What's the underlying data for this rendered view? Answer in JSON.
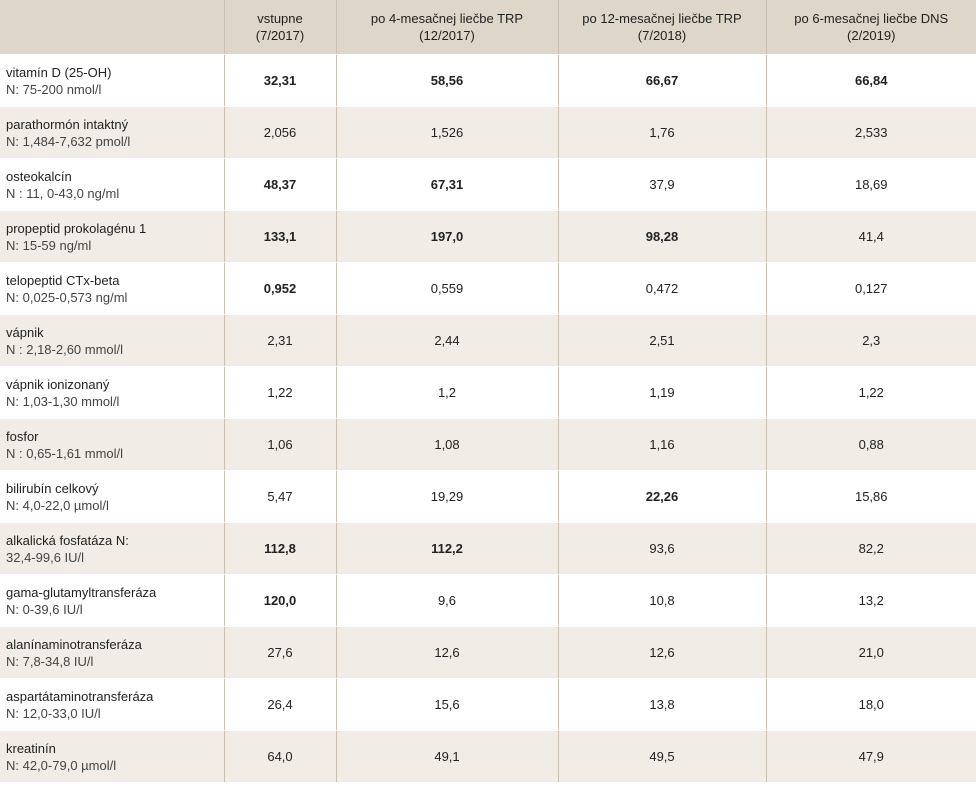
{
  "headers": [
    {
      "line1": "",
      "line2": ""
    },
    {
      "line1": "vstupne",
      "line2": "(7/2017)"
    },
    {
      "line1": "po 4-mesačnej liečbe TRP",
      "line2": "(12/2017)"
    },
    {
      "line1": "po 12-mesačnej liečbe TRP",
      "line2": "(7/2018)"
    },
    {
      "line1": "po 6-mesačnej liečbe DNS",
      "line2": "(2/2019)"
    }
  ],
  "rows": [
    {
      "param": "vitamín D (25-OH)",
      "norm": "N: 75-200 nmol/l",
      "values": [
        "32,31",
        "58,56",
        "66,67",
        "66,84"
      ],
      "bold": [
        true,
        true,
        true,
        true
      ]
    },
    {
      "param": "parathormón intaktný",
      "norm": "N: 1,484-7,632 pmol/l",
      "values": [
        "2,056",
        "1,526",
        "1,76",
        "2,533"
      ],
      "bold": [
        false,
        false,
        false,
        false
      ]
    },
    {
      "param": "osteokalcín",
      "norm": "N : 11, 0-43,0 ng/ml",
      "values": [
        "48,37",
        "67,31",
        "37,9",
        "18,69"
      ],
      "bold": [
        true,
        true,
        false,
        false
      ]
    },
    {
      "param": "propeptid prokolagénu 1",
      "norm": "N: 15-59 ng/ml",
      "values": [
        "133,1",
        "197,0",
        "98,28",
        "41,4"
      ],
      "bold": [
        true,
        true,
        true,
        false
      ]
    },
    {
      "param": "telopeptid CTx-beta",
      "norm": "N: 0,025-0,573 ng/ml",
      "values": [
        "0,952",
        "0,559",
        "0,472",
        "0,127"
      ],
      "bold": [
        true,
        false,
        false,
        false
      ]
    },
    {
      "param": "vápnik",
      "norm": "N : 2,18-2,60 mmol/l",
      "values": [
        "2,31",
        "2,44",
        "2,51",
        "2,3"
      ],
      "bold": [
        false,
        false,
        false,
        false
      ]
    },
    {
      "param": "vápnik ionizonaný",
      "norm": "N: 1,03-1,30 mmol/l",
      "values": [
        "1,22",
        "1,2",
        "1,19",
        "1,22"
      ],
      "bold": [
        false,
        false,
        false,
        false
      ]
    },
    {
      "param": "fosfor",
      "norm": "N : 0,65-1,61 mmol/l",
      "values": [
        "1,06",
        "1,08",
        "1,16",
        "0,88"
      ],
      "bold": [
        false,
        false,
        false,
        false
      ]
    },
    {
      "param": "bilirubín celkový",
      "norm": "N: 4,0-22,0 µmol/l",
      "values": [
        "5,47",
        "19,29",
        "22,26",
        "15,86"
      ],
      "bold": [
        false,
        false,
        true,
        false
      ]
    },
    {
      "param": "alkalická fosfatáza  N:",
      "norm": "32,4-99,6 IU/l",
      "values": [
        "112,8",
        "112,2",
        "93,6",
        "82,2"
      ],
      "bold": [
        true,
        true,
        false,
        false
      ]
    },
    {
      "param": "gama-glutamyltransferáza",
      "norm": "N: 0-39,6 IU/l",
      "values": [
        "120,0",
        "9,6",
        "10,8",
        "13,2"
      ],
      "bold": [
        true,
        false,
        false,
        false
      ]
    },
    {
      "param": "alanínaminotransferáza",
      "norm": "N: 7,8-34,8 IU/l",
      "values": [
        "27,6",
        "12,6",
        "12,6",
        "21,0"
      ],
      "bold": [
        false,
        false,
        false,
        false
      ]
    },
    {
      "param": "aspartátaminotransferáza",
      "norm": "N: 12,0-33,0 IU/l",
      "values": [
        "26,4",
        "15,6",
        "13,8",
        "18,0"
      ],
      "bold": [
        false,
        false,
        false,
        false
      ]
    },
    {
      "param": "kreatinín",
      "norm": "N: 42,0-79,0 µmol/l",
      "values": [
        "64,0",
        "49,1",
        "49,5",
        "47,9"
      ],
      "bold": [
        false,
        false,
        false,
        false
      ]
    }
  ]
}
